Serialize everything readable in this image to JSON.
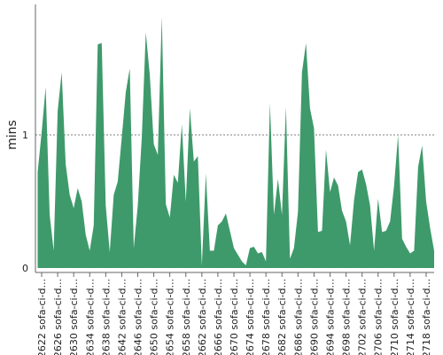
{
  "chart_data": {
    "type": "area",
    "ylabel": "mins",
    "ylim": [
      0,
      2.0
    ],
    "y_ticks": [
      0,
      1
    ],
    "grid": "dotted horizontal line at y=1",
    "color": "#3f9a6b",
    "x_tick_labels": [
      "#2622 sofa-ci-d...",
      "#2626 sofa-ci-d...",
      "#2630 sofa-ci-d...",
      "#2634 sofa-ci-d...",
      "#2638 sofa-ci-d...",
      "#2642 sofa-ci-d...",
      "#2646 sofa-ci-d...",
      "#2650 sofa-ci-d...",
      "#2654 sofa-ci-d...",
      "#2658 sofa-ci-d...",
      "#2662 sofa-ci-d...",
      "#2666 sofa-ci-d...",
      "#2670 sofa-ci-d...",
      "#2674 sofa-ci-d...",
      "#2678 sofa-ci-d...",
      "#2682 sofa-ci-d...",
      "#2686 sofa-ci-d...",
      "#2690 sofa-ci-d...",
      "#2694 sofa-ci-d...",
      "#2698 sofa-ci-d...",
      "#2702 sofa-ci-d...",
      "#2706 sofa-ci-d...",
      "#2710 sofa-ci-d...",
      "#2714 sofa-ci-d...",
      "#2718 sofa-ci-d..."
    ],
    "x": [
      2621,
      2622,
      2623,
      2624,
      2625,
      2626,
      2627,
      2628,
      2629,
      2630,
      2631,
      2632,
      2633,
      2634,
      2635,
      2636,
      2637,
      2638,
      2639,
      2640,
      2641,
      2642,
      2643,
      2644,
      2645,
      2646,
      2647,
      2648,
      2649,
      2650,
      2651,
      2652,
      2653,
      2654,
      2655,
      2656,
      2657,
      2658,
      2659,
      2660,
      2661,
      2662,
      2663,
      2664,
      2665,
      2666,
      2667,
      2668,
      2669,
      2670,
      2671,
      2672,
      2673,
      2674,
      2675,
      2676,
      2677,
      2678,
      2679,
      2680,
      2681,
      2682,
      2683,
      2684,
      2685,
      2686,
      2687,
      2688,
      2689,
      2690,
      2691,
      2692,
      2693,
      2694,
      2695,
      2696,
      2697,
      2698,
      2699,
      2700,
      2701,
      2702,
      2703,
      2704,
      2705,
      2706,
      2707,
      2708,
      2709,
      2710,
      2711,
      2712,
      2713,
      2714,
      2715,
      2716,
      2717,
      2718,
      2719,
      2720
    ],
    "values": [
      0.72,
      1.02,
      1.36,
      0.4,
      0.13,
      1.18,
      1.47,
      0.78,
      0.55,
      0.45,
      0.6,
      0.5,
      0.25,
      0.13,
      0.32,
      1.68,
      1.69,
      0.47,
      0.12,
      0.55,
      0.65,
      0.98,
      1.32,
      1.5,
      0.15,
      0.47,
      0.98,
      1.77,
      1.45,
      0.93,
      0.85,
      1.89,
      0.48,
      0.38,
      0.7,
      0.64,
      1.08,
      0.5,
      1.2,
      0.8,
      0.84,
      0.02,
      0.71,
      0.13,
      0.13,
      0.32,
      0.35,
      0.41,
      0.28,
      0.15,
      0.1,
      0.05,
      0.02,
      0.15,
      0.16,
      0.11,
      0.12,
      0.05,
      1.24,
      0.4,
      0.67,
      0.4,
      1.21,
      0.07,
      0.15,
      0.42,
      1.47,
      1.69,
      1.2,
      1.05,
      0.27,
      0.28,
      0.89,
      0.57,
      0.68,
      0.62,
      0.43,
      0.35,
      0.17,
      0.51,
      0.72,
      0.74,
      0.63,
      0.47,
      0.13,
      0.52,
      0.27,
      0.28,
      0.35,
      0.62,
      1.0,
      0.22,
      0.16,
      0.11,
      0.13,
      0.76,
      0.92,
      0.5,
      0.3,
      0.13
    ]
  }
}
